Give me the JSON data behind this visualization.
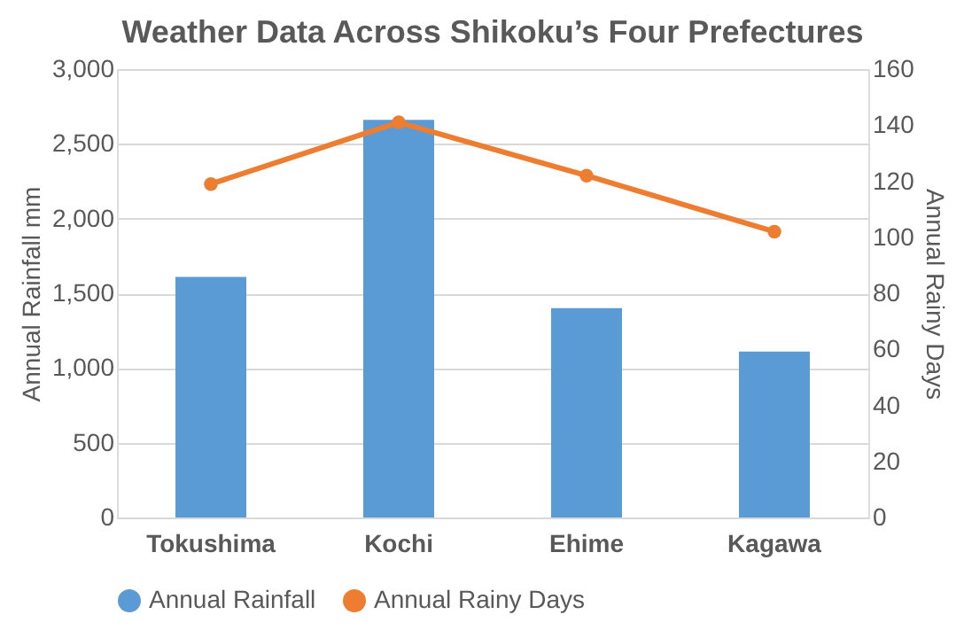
{
  "chart_data": {
    "type": "bar",
    "title": "Weather Data Across Shikoku’s Four Prefectures",
    "categories": [
      "Tokushima",
      "Kochi",
      "Ehime",
      "Kagawa"
    ],
    "series": [
      {
        "name": "Annual Rainfall",
        "color": "#5b9bd5",
        "values": [
          1610,
          2660,
          1400,
          1110
        ]
      },
      {
        "name": "Annual Rainy Days",
        "type": "line",
        "axis": "y2",
        "color": "#ed7d31",
        "values": [
          119,
          141,
          122,
          102
        ]
      }
    ],
    "ylabel": "Annual Rainfall mm",
    "y2label": "Annual Rainy Days",
    "ylim": [
      0,
      3000
    ],
    "yticks": [
      0,
      500,
      {
        "value": 1000,
        "label": "1,000"
      },
      {
        "value": 1500,
        "label": "1,500"
      },
      {
        "value": 2000,
        "label": "2,000"
      },
      {
        "value": 2500,
        "label": "2,500"
      },
      {
        "value": 3000,
        "label": "3,000"
      }
    ],
    "y2lim": [
      0,
      160
    ],
    "y2ticks": [
      0,
      20,
      40,
      60,
      80,
      100,
      120,
      140,
      160
    ],
    "grid": "y",
    "legend": "bottom",
    "marker": "circle",
    "line_style": "solid"
  }
}
